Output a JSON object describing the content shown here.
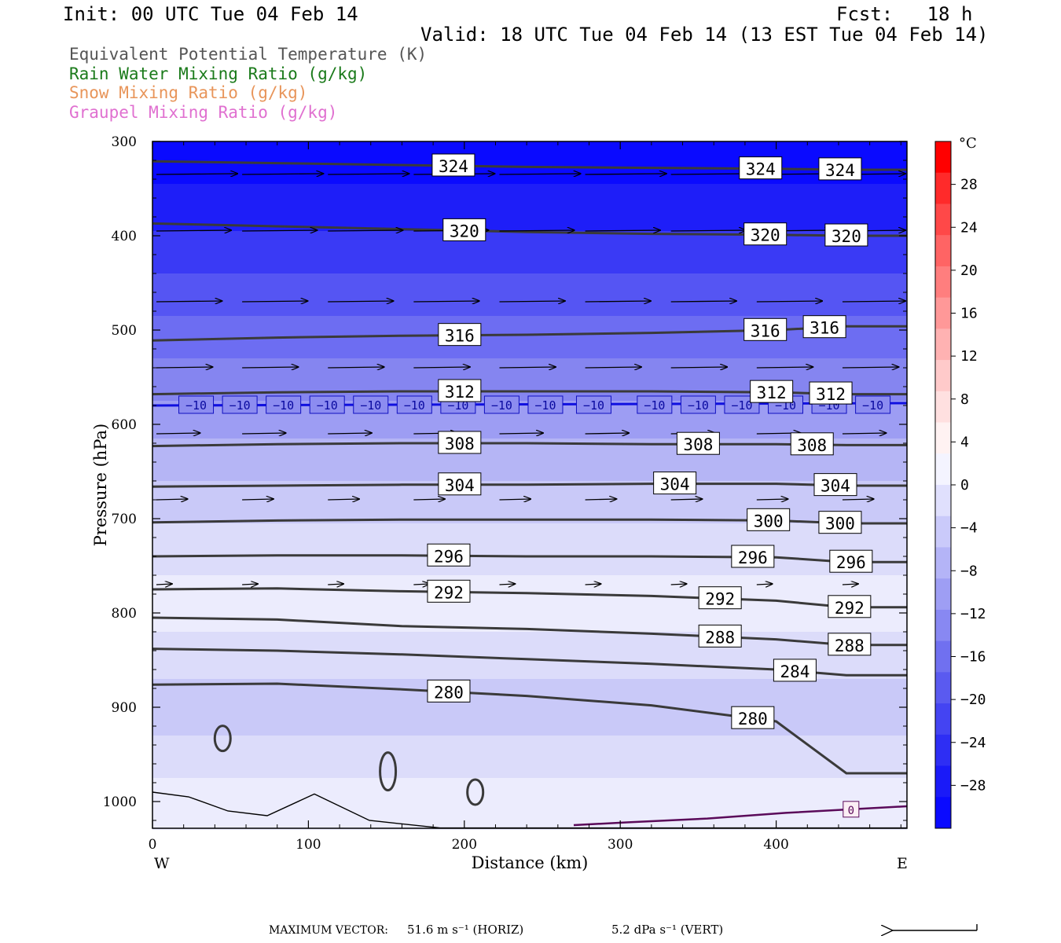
{
  "header": {
    "init": "Init: 00 UTC Tue 04 Feb 14",
    "fcst": "Fcst:   18 h",
    "valid": "Valid: 18 UTC Tue 04 Feb 14 (13 EST Tue 04 Feb 14)"
  },
  "legend": [
    {
      "text": "Equivalent Potential Temperature (K)",
      "color": "#555555"
    },
    {
      "text": "Rain Water Mixing Ratio (g/kg)",
      "color": "#1a7a1a"
    },
    {
      "text": "Snow Mixing Ratio (g/kg)",
      "color": "#e8955a"
    },
    {
      "text": "Graupel Mixing Ratio (g/kg)",
      "color": "#e070d0"
    }
  ],
  "footer": {
    "max_vector_label": "MAXIMUM VECTOR:",
    "horiz": "51.6 m s⁻¹ (HORIZ)",
    "vert": "5.2 dPa s⁻¹ (VERT)"
  },
  "chart_data": {
    "type": "contour",
    "xlabel": "Distance (km)",
    "ylabel": "Pressure (hPa)",
    "x_ticks": [
      0,
      100,
      200,
      300,
      400
    ],
    "y_ticks": [
      300,
      400,
      500,
      600,
      700,
      800,
      900,
      1000
    ],
    "xlim": [
      0,
      485
    ],
    "ylim": [
      1030,
      300
    ],
    "y_scale": "linear-inverted",
    "left_end_label": "W",
    "right_end_label": "E",
    "colorbar": {
      "unit": "°C",
      "ticks": [
        28,
        24,
        20,
        16,
        12,
        8,
        4,
        0,
        -4,
        -8,
        -12,
        -16,
        -20,
        -24,
        -28
      ],
      "tick_labels": [
        "28",
        "24",
        "20",
        "16",
        "12",
        "8",
        "4",
        "0",
        "−4",
        "−8",
        "−12",
        "−16",
        "−20",
        "−24",
        "−28"
      ],
      "range": [
        -32,
        32
      ]
    },
    "theta_e_contours": [
      {
        "value": 324,
        "label": "324",
        "p": [
          321,
          323,
          325,
          327,
          328,
          329,
          330
        ],
        "labels_at_x": [
          193,
          390,
          441
        ]
      },
      {
        "value": 320,
        "label": "320",
        "p": [
          387,
          390,
          393,
          396,
          398,
          399,
          400
        ],
        "labels_at_x": [
          200,
          393,
          445
        ]
      },
      {
        "value": 316,
        "label": "316",
        "p": [
          511,
          508,
          506,
          505,
          503,
          500,
          496
        ],
        "labels_at_x": [
          197,
          393,
          431
        ]
      },
      {
        "value": 312,
        "label": "312",
        "p": [
          568,
          566,
          565,
          565,
          565,
          566,
          568
        ],
        "labels_at_x": [
          197,
          397,
          435
        ]
      },
      {
        "value": 308,
        "label": "308",
        "p": [
          623,
          621,
          620,
          620,
          621,
          621,
          622
        ],
        "labels_at_x": [
          197,
          350,
          423
        ]
      },
      {
        "value": 304,
        "label": "304",
        "p": [
          666,
          665,
          664,
          664,
          663,
          663,
          665
        ],
        "labels_at_x": [
          197,
          335,
          438
        ]
      },
      {
        "value": 300,
        "label": "300",
        "p": [
          704,
          702,
          701,
          701,
          701,
          702,
          705
        ],
        "labels_at_x": [
          395,
          441
        ]
      },
      {
        "value": 296,
        "label": "296",
        "p": [
          740,
          739,
          739,
          740,
          740,
          741,
          746
        ],
        "labels_at_x": [
          190,
          385,
          448
        ]
      },
      {
        "value": 292,
        "label": "292",
        "p": [
          775,
          774,
          777,
          779,
          782,
          787,
          794
        ],
        "labels_at_x": [
          190,
          364,
          447
        ]
      },
      {
        "value": 288,
        "label": "288",
        "p": [
          805,
          807,
          814,
          817,
          822,
          828,
          834
        ],
        "labels_at_x": [
          364,
          447
        ]
      },
      {
        "value": 284,
        "label": "284",
        "p": [
          838,
          840,
          844,
          849,
          854,
          860,
          866
        ],
        "labels_at_x": [
          412
        ]
      },
      {
        "value": 280,
        "label": "280",
        "p": [
          876,
          875,
          881,
          888,
          898,
          915,
          970
        ],
        "labels_at_x": [
          190,
          385
        ]
      }
    ],
    "contour_x_km": [
      0,
      80,
      160,
      240,
      320,
      400,
      445
    ],
    "temperature_isotherms": [
      {
        "value": -10,
        "label": "−10",
        "p": 580,
        "labels_at_x": [
          28,
          56,
          84,
          112,
          140,
          168,
          196,
          224,
          252,
          283,
          322,
          350,
          378,
          406,
          434,
          462
        ]
      },
      {
        "value": 0,
        "label": "0",
        "labels_at_x": [
          448
        ]
      }
    ],
    "wind_vectors": [
      {
        "p": 335,
        "x": [
          0,
          55,
          110,
          165,
          220,
          275,
          330,
          385,
          440
        ],
        "len_km": [
          52,
          52,
          52,
          52,
          52,
          52,
          52,
          52,
          52
        ]
      },
      {
        "p": 395,
        "x": [
          0,
          55,
          110,
          165,
          220,
          275,
          330,
          385,
          440
        ],
        "len_km": [
          48,
          48,
          48,
          48,
          48,
          48,
          48,
          48,
          48
        ]
      },
      {
        "p": 470,
        "x": [
          0,
          55,
          110,
          165,
          220,
          275,
          330,
          385,
          440
        ],
        "len_km": [
          42,
          42,
          42,
          42,
          42,
          42,
          42,
          42,
          42
        ]
      },
      {
        "p": 540,
        "x": [
          0,
          55,
          110,
          165,
          220,
          275,
          330,
          385,
          440
        ],
        "len_km": [
          36,
          36,
          36,
          36,
          36,
          36,
          36,
          36,
          36
        ]
      },
      {
        "p": 610,
        "x": [
          0,
          55,
          110,
          165,
          220,
          275,
          330,
          385,
          440
        ],
        "len_km": [
          28,
          28,
          28,
          28,
          28,
          28,
          28,
          28,
          28
        ]
      },
      {
        "p": 680,
        "x": [
          0,
          55,
          110,
          165,
          220,
          275,
          330,
          385,
          440
        ],
        "len_km": [
          20,
          20,
          20,
          20,
          20,
          20,
          20,
          20,
          20
        ]
      },
      {
        "p": 770,
        "x": [
          0,
          55,
          110,
          165,
          220,
          275,
          330,
          385,
          440
        ],
        "len_km": [
          10,
          10,
          10,
          10,
          10,
          10,
          10,
          10,
          10
        ]
      }
    ],
    "shading_bands": [
      {
        "p_top": 300,
        "p_bottom": 345,
        "color": "#0a0aff"
      },
      {
        "p_top": 345,
        "p_bottom": 395,
        "color": "#1e1ef8"
      },
      {
        "p_top": 395,
        "p_bottom": 440,
        "color": "#3a3af5"
      },
      {
        "p_top": 440,
        "p_bottom": 485,
        "color": "#5555f3"
      },
      {
        "p_top": 485,
        "p_bottom": 530,
        "color": "#6d6df2"
      },
      {
        "p_top": 530,
        "p_bottom": 575,
        "color": "#8585f0"
      },
      {
        "p_top": 575,
        "p_bottom": 615,
        "color": "#9d9df3"
      },
      {
        "p_top": 615,
        "p_bottom": 660,
        "color": "#b5b5f5"
      },
      {
        "p_top": 660,
        "p_bottom": 705,
        "color": "#c9c9f8"
      },
      {
        "p_top": 705,
        "p_bottom": 760,
        "color": "#dcdcfa"
      },
      {
        "p_top": 760,
        "p_bottom": 820,
        "color": "#ececfd"
      },
      {
        "p_top": 820,
        "p_bottom": 870,
        "color": "#dcdcfa"
      },
      {
        "p_top": 870,
        "p_bottom": 930,
        "color": "#c9c9f8"
      },
      {
        "p_top": 930,
        "p_bottom": 975,
        "color": "#dcdcfa"
      },
      {
        "p_top": 975,
        "p_bottom": 1030,
        "color": "#ececfd"
      }
    ],
    "colors": {
      "contour": "#3a3a3a",
      "isotherm_minus10": "#1010e0",
      "isotherm_zero": "#5a0a5a",
      "label_box_bg": "#ffffff"
    }
  }
}
